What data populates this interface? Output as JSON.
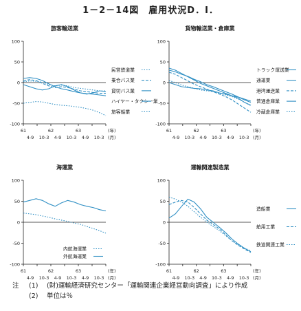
{
  "title": "1－2－14図　雇用状況D．I．",
  "notes": [
    {
      "label": "注",
      "num": "(1)",
      "text": "(財)運輸経済研究センター「運輸関連企業経営動向調査」により作成"
    },
    {
      "label": "",
      "num": "(2)",
      "text": "単位は％"
    }
  ],
  "colors": {
    "line": "#2f8fc4",
    "axis": "#222222"
  },
  "chart_data": [
    {
      "type": "line",
      "title": "旅客輸送業",
      "ylim": [
        -100,
        100
      ],
      "yticks": [
        100,
        50,
        0,
        -50,
        -100
      ],
      "x": [
        0,
        1,
        2,
        3,
        4,
        5,
        6,
        7,
        8,
        9,
        10,
        11,
        12,
        13
      ],
      "xticks": [
        "4-9",
        "10-3",
        "4-9",
        "10-3",
        "4-9",
        "10-3"
      ],
      "year_labels": [
        "61",
        "62",
        "63",
        "(年)"
      ],
      "month_unit": "(月)",
      "series": [
        {
          "name": "民営鉄道業",
          "style": "dotted",
          "values": [
            2,
            4,
            3,
            1,
            -5,
            -8,
            -6,
            -8,
            -12,
            -14,
            -16,
            -18,
            -20,
            -20
          ]
        },
        {
          "name": "乗合バス業",
          "style": "dashed",
          "values": [
            5,
            7,
            5,
            -2,
            -8,
            -12,
            -10,
            -12,
            -16,
            -20,
            -22,
            -24,
            -26,
            -26
          ]
        },
        {
          "name": "貸切バス業",
          "style": "solid",
          "values": [
            10,
            12,
            10,
            5,
            -3,
            -10,
            -15,
            -18,
            -22,
            -25,
            -27,
            -28,
            -30,
            -32
          ]
        },
        {
          "name": "ハイヤー・タクシー業",
          "style": "solid",
          "values": [
            -5,
            -10,
            -15,
            -18,
            -15,
            -8,
            -5,
            -10,
            -18,
            -25,
            -28,
            -25,
            -20,
            -22
          ]
        },
        {
          "name": "旅客船業",
          "style": "dotted",
          "values": [
            -50,
            -48,
            -46,
            -47,
            -50,
            -53,
            -55,
            -56,
            -58,
            -60,
            -63,
            -67,
            -73,
            -80
          ]
        }
      ]
    },
    {
      "type": "line",
      "title": "貨物輸送業・倉庫業",
      "ylim": [
        -100,
        100
      ],
      "yticks": [
        100,
        50,
        0,
        -50,
        -100
      ],
      "x": [
        0,
        1,
        2,
        3,
        4,
        5,
        6,
        7,
        8,
        9,
        10,
        11,
        12,
        13
      ],
      "xticks": [
        "4-9",
        "10-3",
        "4-9",
        "10-3",
        "4-9",
        "10-3"
      ],
      "year_labels": [
        "61",
        "62",
        "63",
        "(年)"
      ],
      "month_unit": "(月)",
      "series": [
        {
          "name": "トラック運送業",
          "style": "solid",
          "values": [
            30,
            26,
            20,
            15,
            8,
            2,
            -5,
            -10,
            -16,
            -22,
            -28,
            -35,
            -42,
            -48
          ]
        },
        {
          "name": "通運業",
          "style": "solid",
          "values": [
            35,
            30,
            22,
            14,
            6,
            -2,
            -8,
            -14,
            -20,
            -26,
            -32,
            -38,
            -48,
            -55
          ]
        },
        {
          "name": "港湾運送業",
          "style": "dashed",
          "values": [
            25,
            20,
            12,
            4,
            -4,
            -10,
            -16,
            -22,
            -28,
            -34,
            -42,
            -52,
            -62,
            -72
          ]
        },
        {
          "name": "普通倉庫業",
          "style": "solid",
          "values": [
            0,
            -5,
            -10,
            -12,
            -14,
            -15,
            -18,
            -20,
            -25,
            -28,
            -32,
            -35,
            -40,
            -45
          ]
        },
        {
          "name": "冷蔵倉庫業",
          "style": "dotted",
          "values": [
            5,
            0,
            -6,
            -10,
            -14,
            -18,
            -20,
            -22,
            -26,
            -30,
            -34,
            -40,
            -48,
            -56
          ]
        }
      ]
    },
    {
      "type": "line",
      "title": "海運業",
      "ylim": [
        -100,
        100
      ],
      "yticks": [
        100,
        50,
        0,
        -50,
        -100
      ],
      "x": [
        0,
        1,
        2,
        3,
        4,
        5,
        6,
        7,
        8,
        9,
        10,
        11,
        12,
        13
      ],
      "xticks": [
        "4-9",
        "10-3",
        "4-9",
        "10-3",
        "4-9",
        "10-3"
      ],
      "year_labels": [
        "61",
        "62",
        "63",
        "(年)"
      ],
      "month_unit": "(月)",
      "series": [
        {
          "name": "内航海運業",
          "style": "dotted",
          "values": [
            22,
            20,
            18,
            15,
            12,
            8,
            5,
            2,
            -2,
            -5,
            -10,
            -15,
            -20,
            -26
          ]
        },
        {
          "name": "外航海運業",
          "style": "solid",
          "values": [
            48,
            52,
            56,
            52,
            44,
            38,
            46,
            52,
            48,
            42,
            38,
            35,
            30,
            27
          ]
        }
      ]
    },
    {
      "type": "line",
      "title": "運輸関連製造業",
      "ylim": [
        -100,
        100
      ],
      "yticks": [
        100,
        50,
        0,
        -50,
        -100
      ],
      "x": [
        0,
        1,
        2,
        3,
        4,
        5,
        6,
        7,
        8,
        9,
        10,
        11,
        12,
        13
      ],
      "xticks": [
        "4-9",
        "10-3",
        "4-9",
        "10-3",
        "4-9",
        "10-3"
      ],
      "year_labels": [
        "61",
        "62",
        "63",
        "(年)"
      ],
      "month_unit": "(月)",
      "series": [
        {
          "name": "造船業",
          "style": "solid",
          "values": [
            10,
            20,
            38,
            55,
            48,
            32,
            12,
            0,
            -12,
            -25,
            -40,
            -52,
            -62,
            -70
          ]
        },
        {
          "name": "舶用工業",
          "style": "dashed",
          "values": [
            42,
            48,
            52,
            48,
            35,
            20,
            5,
            -5,
            -16,
            -30,
            -44,
            -55,
            -64,
            -72
          ]
        },
        {
          "name": "鉄道関連工業",
          "style": "dotted",
          "values": [
            60,
            55,
            48,
            38,
            25,
            12,
            0,
            -10,
            -20,
            -32,
            -44,
            -54,
            -62,
            -68
          ]
        }
      ]
    }
  ]
}
